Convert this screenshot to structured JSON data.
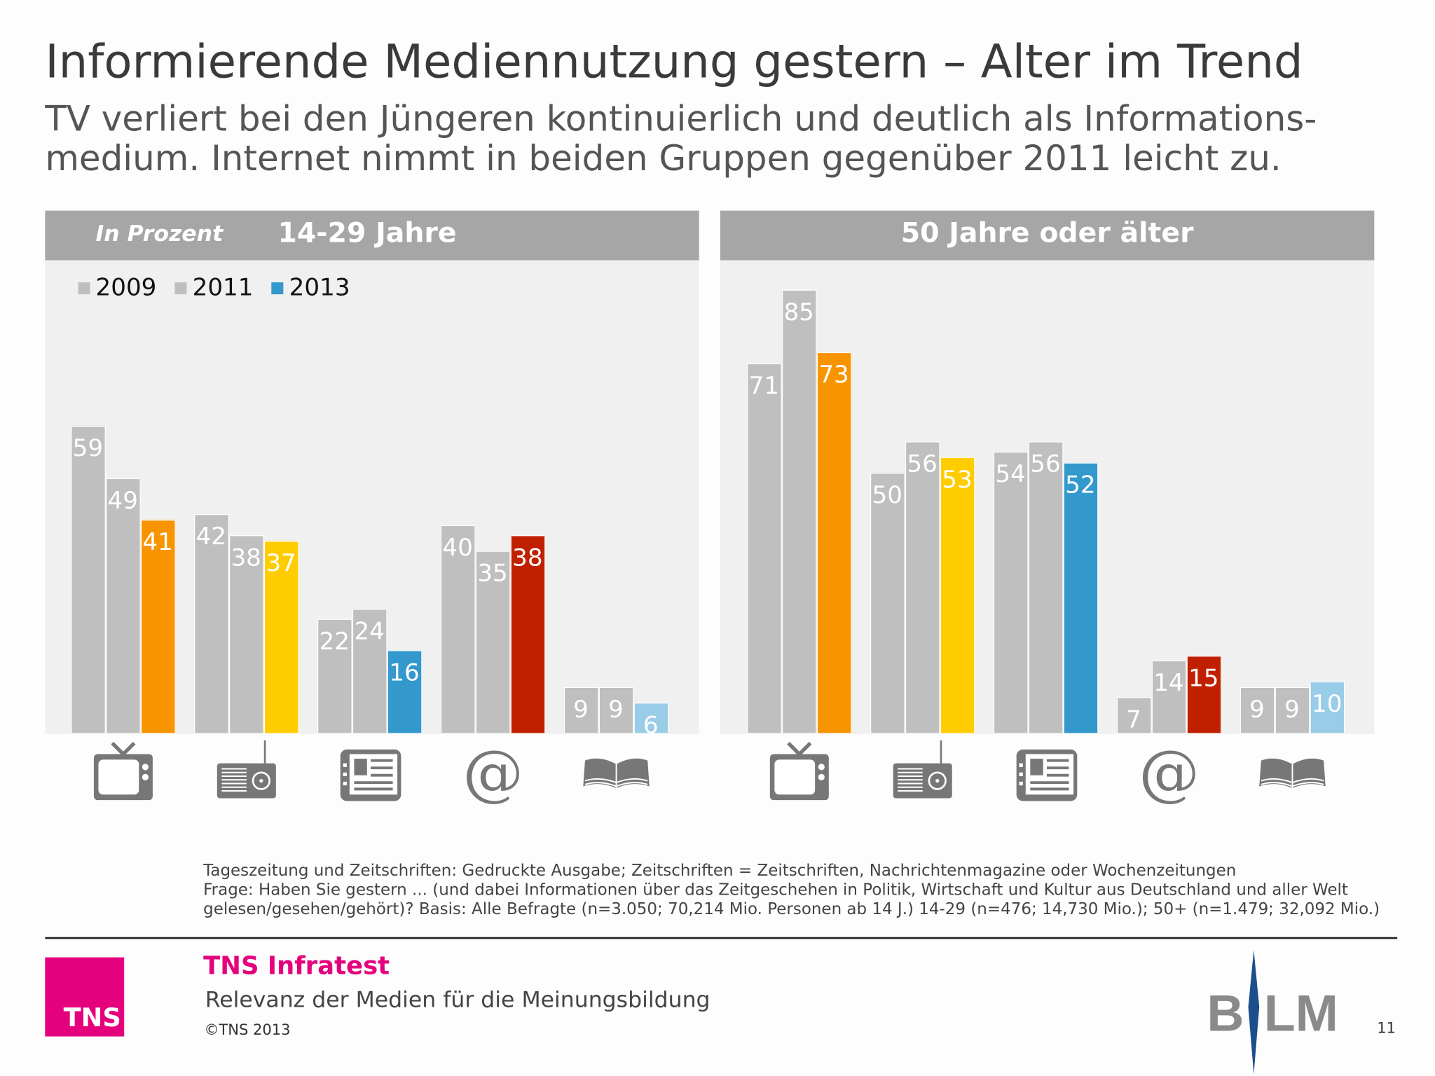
{
  "title": "Informierende Mediennutzung gestern – Alter im Trend",
  "subtitle": "TV verliert bei den Jüngeren kontinuierlich und deutlich als Informations-medium. Internet nimmt in beiden Gruppen gegenüber 2011 leicht zu.",
  "chart_data": [
    {
      "type": "bar",
      "title": "14-29 Jahre",
      "unit_label": "In Prozent",
      "categories": [
        "TV",
        "Radio",
        "Tageszeitung",
        "Internet",
        "Zeitschriften"
      ],
      "category_icons": [
        "tv-icon",
        "radio-icon",
        "newspaper-icon",
        "at-icon",
        "book-icon"
      ],
      "legend": {
        "placement": "top-left",
        "entries": [
          "2009",
          "2011",
          "2013"
        ],
        "colors": [
          "#c0bfc0",
          "#c0bfc0",
          "#3399cc"
        ]
      },
      "series": [
        {
          "name": "2009",
          "values": [
            59,
            42,
            22,
            40,
            9
          ]
        },
        {
          "name": "2011",
          "values": [
            49,
            38,
            24,
            35,
            9
          ]
        },
        {
          "name": "2013",
          "values": [
            41,
            37,
            16,
            38,
            6
          ]
        }
      ],
      "ylim": [
        0,
        90
      ],
      "grid": false
    },
    {
      "type": "bar",
      "title": "50 Jahre oder älter",
      "categories": [
        "TV",
        "Radio",
        "Tageszeitung",
        "Internet",
        "Zeitschriften"
      ],
      "category_icons": [
        "tv-icon",
        "radio-icon",
        "newspaper-icon",
        "at-icon",
        "book-icon"
      ],
      "series": [
        {
          "name": "2009",
          "values": [
            71,
            50,
            54,
            7,
            9
          ]
        },
        {
          "name": "2011",
          "values": [
            85,
            56,
            56,
            14,
            9
          ]
        },
        {
          "name": "2013",
          "values": [
            73,
            53,
            52,
            15,
            10
          ]
        }
      ],
      "ylim": [
        0,
        90
      ],
      "grid": false
    }
  ],
  "colors": {
    "previous_years": "#c0bfc0",
    "category_2013": [
      "#f79400",
      "#ffcc00",
      "#3399cc",
      "#c02000",
      "#99cce6"
    ],
    "brand": "#e5007e"
  },
  "notes": [
    "Tageszeitung und Zeitschriften: Gedruckte Ausgabe; Zeitschriften = Zeitschriften, Nachrichtenmagazine oder Wochenzeitungen",
    "Frage: Haben Sie gestern ... (und dabei Informationen über das Zeitgeschehen in Politik, Wirtschaft und Kultur aus Deutschland und aller Welt",
    "gelesen/gesehen/gehört)? Basis: Alle Befragte (n=3.050; 70,214 Mio. Personen ab 14 J.) 14-29 (n=476; 14,730 Mio.); 50+ (n=1.479; 32,092 Mio.)"
  ],
  "footer": {
    "logo_text": "TNS",
    "brand": "TNS Infratest",
    "report": "Relevanz der Medien für die Meinungsbildung",
    "copyright": "©TNS 2013",
    "partner_logo": "BLM",
    "page": "11"
  }
}
